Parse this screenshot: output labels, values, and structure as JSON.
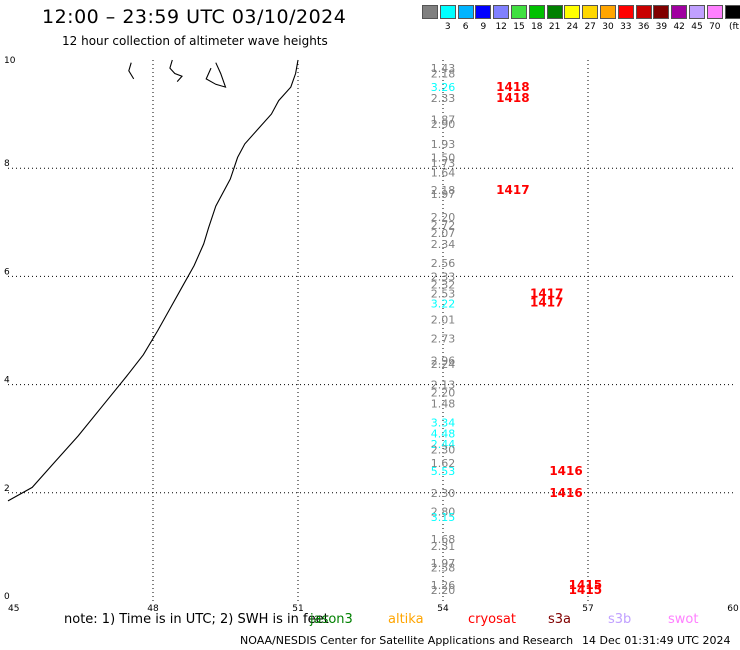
{
  "header": {
    "title": "12:00 – 23:59 UTC 03/10/2024",
    "subtitle": "12 hour collection of altimeter wave heights"
  },
  "legend": {
    "unit": "(ft)",
    "items": [
      {
        "label": "",
        "color": "#808080"
      },
      {
        "label": "3",
        "color": "#00ffff"
      },
      {
        "label": "6",
        "color": "#00b4ff"
      },
      {
        "label": "9",
        "color": "#0000ff"
      },
      {
        "label": "12",
        "color": "#8080ff"
      },
      {
        "label": "15",
        "color": "#40e040"
      },
      {
        "label": "18",
        "color": "#00c000"
      },
      {
        "label": "21",
        "color": "#008000"
      },
      {
        "label": "24",
        "color": "#ffff00"
      },
      {
        "label": "27",
        "color": "#ffd700"
      },
      {
        "label": "30",
        "color": "#ffa500"
      },
      {
        "label": "33",
        "color": "#ff0000"
      },
      {
        "label": "36",
        "color": "#c80000"
      },
      {
        "label": "39",
        "color": "#800000"
      },
      {
        "label": "42",
        "color": "#a000a0"
      },
      {
        "label": "45",
        "color": "#c0a0ff"
      },
      {
        "label": "70",
        "color": "#ff80ff"
      },
      {
        "label": "",
        "color": "#000000"
      }
    ]
  },
  "map": {
    "lon_range": [
      45,
      60
    ],
    "lat_range": [
      0,
      10
    ],
    "lon_ticks": [
      45,
      48,
      51,
      54,
      57,
      60
    ],
    "lat_ticks": [
      0,
      2,
      4,
      6,
      8,
      10
    ],
    "gridlines": true,
    "coastline": [
      [
        51.0,
        10.0
      ],
      [
        50.95,
        9.75
      ],
      [
        50.85,
        9.5
      ],
      [
        50.6,
        9.25
      ],
      [
        50.45,
        9.0
      ],
      [
        50.2,
        8.75
      ],
      [
        49.9,
        8.45
      ],
      [
        49.75,
        8.2
      ],
      [
        49.6,
        7.8
      ],
      [
        49.3,
        7.3
      ],
      [
        49.15,
        6.9
      ],
      [
        49.05,
        6.6
      ],
      [
        48.85,
        6.2
      ],
      [
        48.6,
        5.8
      ],
      [
        48.35,
        5.4
      ],
      [
        48.1,
        5.0
      ],
      [
        47.8,
        4.55
      ],
      [
        47.45,
        4.15
      ],
      [
        46.95,
        3.6
      ],
      [
        46.45,
        3.05
      ],
      [
        45.95,
        2.55
      ],
      [
        45.5,
        2.1
      ],
      [
        45.0,
        1.85
      ]
    ],
    "islands": [
      [
        [
          47.55,
          9.95
        ],
        [
          47.5,
          9.8
        ],
        [
          47.6,
          9.65
        ]
      ],
      [
        [
          48.4,
          10.0
        ],
        [
          48.35,
          9.85
        ],
        [
          48.45,
          9.75
        ],
        [
          48.6,
          9.7
        ],
        [
          48.5,
          9.6
        ]
      ],
      [
        [
          49.2,
          9.85
        ],
        [
          49.1,
          9.65
        ],
        [
          49.3,
          9.55
        ],
        [
          49.5,
          9.5
        ],
        [
          49.4,
          9.75
        ],
        [
          49.3,
          9.95
        ]
      ]
    ],
    "observations": [
      {
        "lon": 54.0,
        "lat": 9.85,
        "text": "1.43",
        "color": "#808080"
      },
      {
        "lon": 54.0,
        "lat": 9.75,
        "text": "2.18",
        "color": "#808080"
      },
      {
        "lon": 54.0,
        "lat": 9.5,
        "text": "3.26",
        "color": "#00ffff"
      },
      {
        "lon": 54.0,
        "lat": 9.3,
        "text": "2.33",
        "color": "#808080"
      },
      {
        "lon": 55.1,
        "lat": 9.5,
        "text": "1418",
        "color": "#ff0000"
      },
      {
        "lon": 55.1,
        "lat": 9.3,
        "text": "1418",
        "color": "#ff0000"
      },
      {
        "lon": 54.0,
        "lat": 8.9,
        "text": "1.87",
        "color": "#808080"
      },
      {
        "lon": 54.0,
        "lat": 8.82,
        "text": "2.90",
        "color": "#808080"
      },
      {
        "lon": 54.0,
        "lat": 8.45,
        "text": "1.93",
        "color": "#808080"
      },
      {
        "lon": 54.0,
        "lat": 8.2,
        "text": "1.50",
        "color": "#808080"
      },
      {
        "lon": 54.0,
        "lat": 8.1,
        "text": "1.73",
        "color": "#808080"
      },
      {
        "lon": 54.0,
        "lat": 7.92,
        "text": "1.64",
        "color": "#808080"
      },
      {
        "lon": 54.0,
        "lat": 7.6,
        "text": "2.18",
        "color": "#808080"
      },
      {
        "lon": 54.0,
        "lat": 7.52,
        "text": "1.97",
        "color": "#808080"
      },
      {
        "lon": 55.1,
        "lat": 7.6,
        "text": "1417",
        "color": "#ff0000"
      },
      {
        "lon": 54.0,
        "lat": 7.1,
        "text": "2.20",
        "color": "#808080"
      },
      {
        "lon": 54.0,
        "lat": 6.95,
        "text": "2.72",
        "color": "#808080"
      },
      {
        "lon": 54.0,
        "lat": 6.8,
        "text": "2.07",
        "color": "#808080"
      },
      {
        "lon": 54.0,
        "lat": 6.6,
        "text": "2.34",
        "color": "#808080"
      },
      {
        "lon": 54.0,
        "lat": 6.25,
        "text": "2.56",
        "color": "#808080"
      },
      {
        "lon": 54.0,
        "lat": 6.0,
        "text": "2.33",
        "color": "#808080"
      },
      {
        "lon": 54.0,
        "lat": 5.85,
        "text": "2.32",
        "color": "#808080"
      },
      {
        "lon": 54.0,
        "lat": 5.68,
        "text": "2.53",
        "color": "#808080"
      },
      {
        "lon": 54.0,
        "lat": 5.5,
        "text": "3.22",
        "color": "#00ffff"
      },
      {
        "lon": 55.8,
        "lat": 5.68,
        "text": "1417",
        "color": "#ff0000"
      },
      {
        "lon": 55.8,
        "lat": 5.52,
        "text": "1417",
        "color": "#ff0000"
      },
      {
        "lon": 54.0,
        "lat": 5.2,
        "text": "2.01",
        "color": "#808080"
      },
      {
        "lon": 54.0,
        "lat": 4.85,
        "text": "2.73",
        "color": "#808080"
      },
      {
        "lon": 54.0,
        "lat": 4.45,
        "text": "2.96",
        "color": "#808080"
      },
      {
        "lon": 54.0,
        "lat": 4.38,
        "text": "2.24",
        "color": "#808080"
      },
      {
        "lon": 54.0,
        "lat": 4.0,
        "text": "2.13",
        "color": "#808080"
      },
      {
        "lon": 54.0,
        "lat": 3.85,
        "text": "2.20",
        "color": "#808080"
      },
      {
        "lon": 54.0,
        "lat": 3.65,
        "text": "1.48",
        "color": "#808080"
      },
      {
        "lon": 54.0,
        "lat": 3.3,
        "text": "3.34",
        "color": "#00ffff"
      },
      {
        "lon": 54.0,
        "lat": 3.1,
        "text": "4.48",
        "color": "#00ffff"
      },
      {
        "lon": 54.0,
        "lat": 2.9,
        "text": "2.44",
        "color": "#00ffff"
      },
      {
        "lon": 54.0,
        "lat": 2.8,
        "text": "2.30",
        "color": "#808080"
      },
      {
        "lon": 54.0,
        "lat": 2.55,
        "text": "1.62",
        "color": "#808080"
      },
      {
        "lon": 54.0,
        "lat": 2.4,
        "text": "5.53",
        "color": "#00ffff"
      },
      {
        "lon": 56.2,
        "lat": 2.4,
        "text": "1416",
        "color": "#ff0000"
      },
      {
        "lon": 54.0,
        "lat": 2.0,
        "text": "2.30",
        "color": "#808080"
      },
      {
        "lon": 56.2,
        "lat": 2.0,
        "text": "1416",
        "color": "#ff0000"
      },
      {
        "lon": 54.0,
        "lat": 1.65,
        "text": "2.80",
        "color": "#808080"
      },
      {
        "lon": 54.0,
        "lat": 1.55,
        "text": "3.15",
        "color": "#00ffff"
      },
      {
        "lon": 54.0,
        "lat": 1.15,
        "text": "1.68",
        "color": "#808080"
      },
      {
        "lon": 54.0,
        "lat": 1.02,
        "text": "2.31",
        "color": "#808080"
      },
      {
        "lon": 54.0,
        "lat": 0.7,
        "text": "1.97",
        "color": "#808080"
      },
      {
        "lon": 54.0,
        "lat": 0.62,
        "text": "2.58",
        "color": "#808080"
      },
      {
        "lon": 54.0,
        "lat": 0.3,
        "text": "1.26",
        "color": "#808080"
      },
      {
        "lon": 54.0,
        "lat": 0.2,
        "text": "2.20",
        "color": "#808080"
      },
      {
        "lon": 56.6,
        "lat": 0.3,
        "text": "1415",
        "color": "#ff0000"
      },
      {
        "lon": 56.6,
        "lat": 0.2,
        "text": "1415",
        "color": "#ff0000"
      }
    ]
  },
  "footer": {
    "note": "note: 1) Time is in UTC; 2) SWH is in feet",
    "satellites": [
      {
        "name": "jason3",
        "color": "#008000"
      },
      {
        "name": "altika",
        "color": "#ffa500"
      },
      {
        "name": "cryosat",
        "color": "#ff0000"
      },
      {
        "name": "s3a",
        "color": "#800000"
      },
      {
        "name": "s3b",
        "color": "#c0a0ff"
      },
      {
        "name": "swot",
        "color": "#ff80ff"
      }
    ],
    "credit": "NOAA/NESDIS Center for Satellite Applications and Research",
    "timestamp": "14 Dec 01:31:49 UTC 2024"
  }
}
